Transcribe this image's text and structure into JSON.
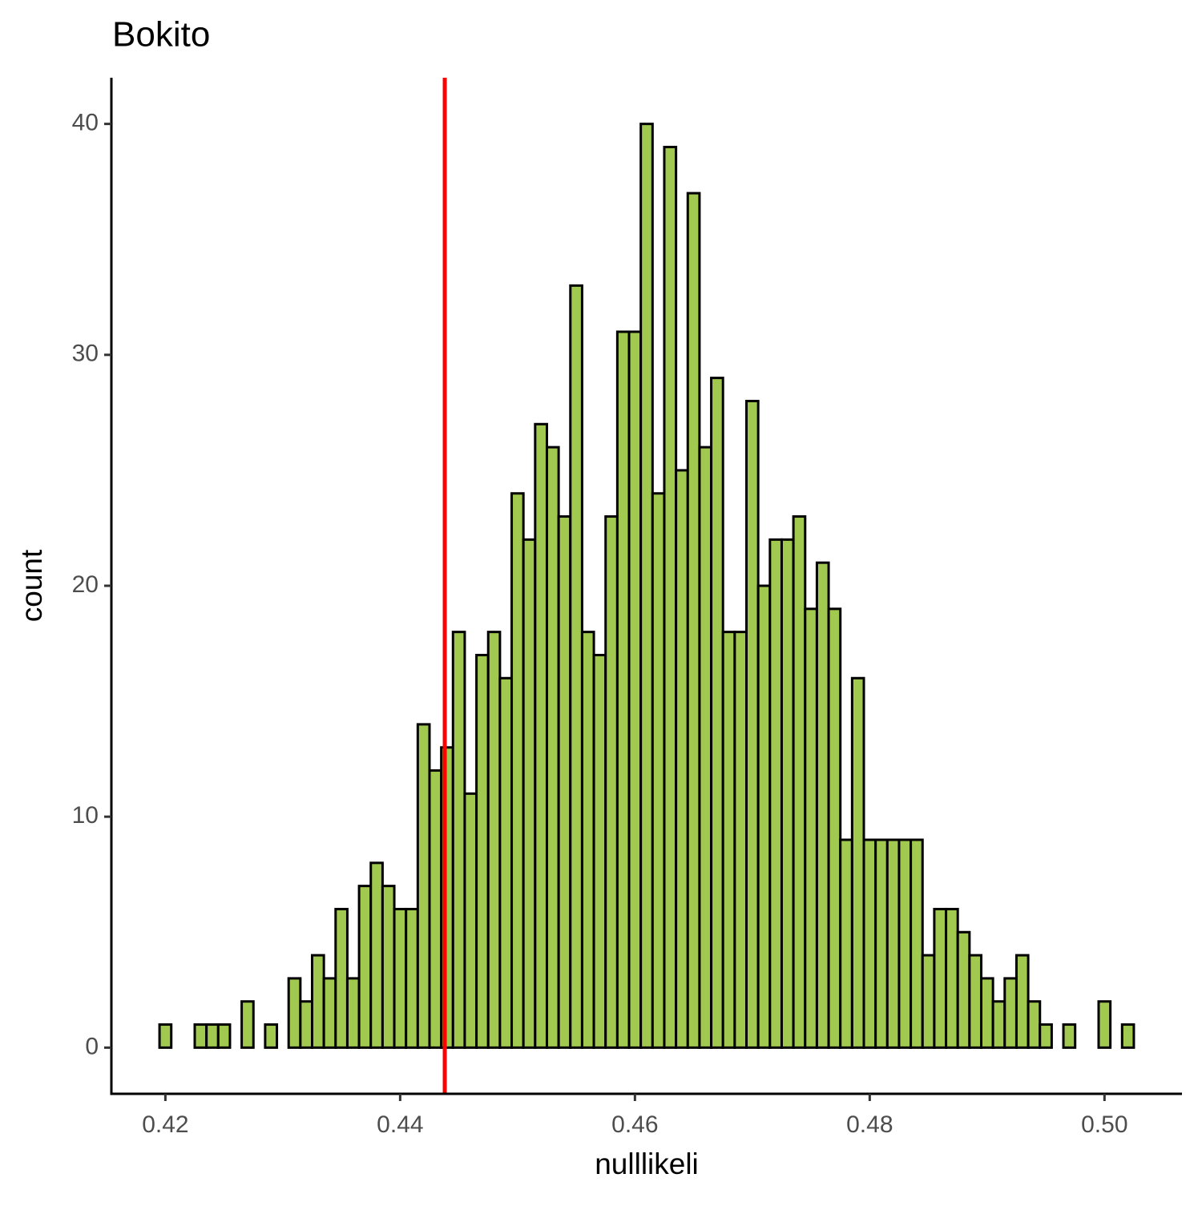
{
  "chart_data": {
    "type": "histogram",
    "title": "Bokito",
    "x_label": "nulllikeli",
    "y_label": "count",
    "bins": [
      0.4195,
      0.4205,
      0.4215,
      0.4225,
      0.4235,
      0.4245,
      0.4255,
      0.4265,
      0.4275,
      0.4285,
      0.4295,
      0.4305,
      0.4315,
      0.4325,
      0.4335,
      0.4345,
      0.4355,
      0.4365,
      0.4375,
      0.4385,
      0.4395,
      0.4405,
      0.4415,
      0.4425,
      0.4435,
      0.4445,
      0.4455,
      0.4465,
      0.4475,
      0.4485,
      0.4495,
      0.4505,
      0.4515,
      0.4525,
      0.4535,
      0.4545,
      0.4555,
      0.4565,
      0.4575,
      0.4585,
      0.4595,
      0.4605,
      0.4615,
      0.4625,
      0.4635,
      0.4645,
      0.4655,
      0.4665,
      0.4675,
      0.4685,
      0.4695,
      0.4705,
      0.4715,
      0.4725,
      0.4735,
      0.4745,
      0.4755,
      0.4765,
      0.4775,
      0.4785,
      0.4795,
      0.4805,
      0.4815,
      0.4825,
      0.4835,
      0.4845,
      0.4855,
      0.4865,
      0.4875,
      0.4885,
      0.4895,
      0.4905,
      0.4915,
      0.4925,
      0.4935,
      0.4945,
      0.4955,
      0.4965,
      0.4975,
      0.4985,
      0.4995,
      0.5005,
      0.5015,
      0.5025
    ],
    "values": [
      1,
      0,
      0,
      1,
      1,
      1,
      0,
      2,
      0,
      1,
      0,
      3,
      2,
      4,
      3,
      6,
      3,
      7,
      8,
      7,
      6,
      6,
      14,
      12,
      13,
      18,
      11,
      17,
      18,
      16,
      24,
      22,
      27,
      26,
      23,
      33,
      18,
      17,
      23,
      31,
      31,
      40,
      24,
      39,
      25,
      37,
      26,
      29,
      18,
      18,
      28,
      20,
      22,
      22,
      23,
      19,
      21,
      19,
      9,
      16,
      9,
      9,
      9,
      9,
      9,
      4,
      6,
      6,
      5,
      4,
      3,
      2,
      3,
      4,
      2,
      1,
      0,
      1,
      0,
      0,
      2,
      0,
      1
    ],
    "color": "#a1c94f",
    "edge_color": "#000000",
    "vline": {
      "value": 0.4438,
      "color": "#ff0000"
    },
    "xlim": [
      0.4154,
      0.5066
    ],
    "ylim": [
      -2,
      42
    ],
    "xticks": [
      0.42,
      0.44,
      0.46,
      0.48,
      {
        "value": 0.5,
        "label": "0.50"
      }
    ],
    "yticks": [
      0,
      10,
      20,
      30,
      40
    ]
  }
}
